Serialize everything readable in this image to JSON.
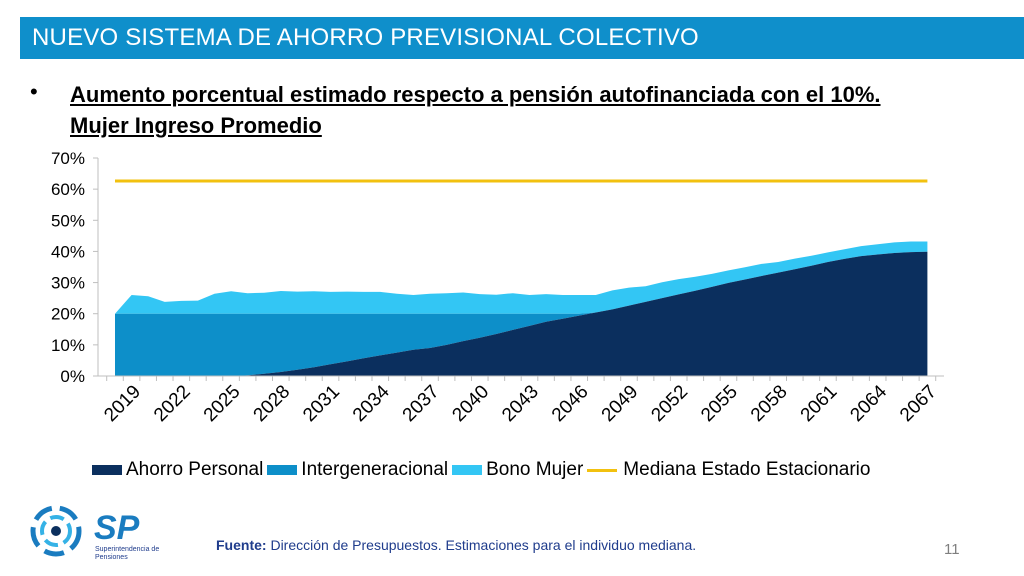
{
  "header": {
    "title": "NUEVO SISTEMA DE AHORRO PREVISIONAL COLECTIVO"
  },
  "bullet": {
    "symbol": "•",
    "line1": "Aumento porcentual estimado respecto a pensión autofinanciada con el 10%.",
    "line2": "Mujer Ingreso Promedio"
  },
  "colors": {
    "header_bg": "#0f8fcb",
    "ahorro_personal": "#0b2f5e",
    "intergeneracional": "#0d8fc9",
    "bono_mujer": "#33c6f4",
    "mediana": "#f2c10f"
  },
  "chart_data": {
    "type": "area",
    "stacked": true,
    "x": [
      2019,
      2020,
      2021,
      2022,
      2023,
      2024,
      2025,
      2026,
      2027,
      2028,
      2029,
      2030,
      2031,
      2032,
      2033,
      2034,
      2035,
      2036,
      2037,
      2038,
      2039,
      2040,
      2041,
      2042,
      2043,
      2044,
      2045,
      2046,
      2047,
      2048,
      2049,
      2050,
      2051,
      2052,
      2053,
      2054,
      2055,
      2056,
      2057,
      2058,
      2059,
      2060,
      2061,
      2062,
      2063,
      2064,
      2065,
      2066,
      2067,
      2068
    ],
    "tick_labels": [
      "2019",
      "2022",
      "2025",
      "2028",
      "2031",
      "2034",
      "2037",
      "2040",
      "2043",
      "2046",
      "2049",
      "2052",
      "2055",
      "2058",
      "2061",
      "2064",
      "2067"
    ],
    "yticks": [
      "0%",
      "10%",
      "20%",
      "30%",
      "40%",
      "50%",
      "60%",
      "70%"
    ],
    "ylim": [
      0,
      70
    ],
    "series": [
      {
        "name": "Ahorro Personal",
        "values": [
          0,
          0,
          0,
          0,
          0,
          0,
          0,
          0,
          0.2,
          0.7,
          1.3,
          2.0,
          2.8,
          3.8,
          4.7,
          5.7,
          6.6,
          7.5,
          8.4,
          9.0,
          10.0,
          11.2,
          12.3,
          13.5,
          14.8,
          16.1,
          17.4,
          18.4,
          19.4,
          20.4,
          21.4,
          22.6,
          23.8,
          25.0,
          26.2,
          27.4,
          28.6,
          29.9,
          31.0,
          32.1,
          33.2,
          34.3,
          35.4,
          36.6,
          37.6,
          38.5,
          39.0,
          39.5,
          39.8,
          39.9
        ]
      },
      {
        "name": "Intergeneracional",
        "values": [
          20,
          20,
          20,
          20,
          20,
          20,
          20,
          20,
          19.8,
          19.3,
          18.7,
          18.0,
          17.2,
          16.2,
          15.3,
          14.3,
          13.4,
          12.5,
          11.6,
          11.0,
          10.0,
          8.8,
          7.7,
          6.5,
          5.2,
          3.9,
          2.6,
          1.6,
          0.6,
          0,
          0,
          0,
          0,
          0,
          0,
          0,
          0,
          0,
          0,
          0,
          0,
          0,
          0,
          0,
          0,
          0,
          0,
          0,
          0,
          0
        ]
      },
      {
        "name": "Bono Mujer",
        "values": [
          0,
          6,
          5.6,
          3.8,
          4.1,
          4.2,
          6.4,
          7.2,
          6.6,
          6.7,
          7.3,
          7.1,
          7.2,
          7.0,
          7.1,
          7.0,
          7.0,
          6.4,
          6.0,
          6.4,
          6.6,
          6.8,
          6.3,
          6.1,
          6.6,
          6.0,
          6.3,
          6.0,
          6.0,
          5.6,
          6.1,
          5.8,
          5.0,
          5.1,
          4.9,
          4.5,
          4.2,
          4.0,
          3.9,
          3.9,
          3.4,
          3.4,
          3.2,
          3.1,
          3.1,
          3.2,
          3.3,
          3.4,
          3.4,
          3.3
        ]
      },
      {
        "name": "Mediana Estado Estacionario",
        "type": "line",
        "values": [
          62.6,
          62.6,
          62.6,
          62.6,
          62.6,
          62.6,
          62.6,
          62.6,
          62.6,
          62.6,
          62.6,
          62.6,
          62.6,
          62.6,
          62.6,
          62.6,
          62.6,
          62.6,
          62.6,
          62.6,
          62.6,
          62.6,
          62.6,
          62.6,
          62.6,
          62.6,
          62.6,
          62.6,
          62.6,
          62.6,
          62.6,
          62.6,
          62.6,
          62.6,
          62.6,
          62.6,
          62.6,
          62.6,
          62.6,
          62.6,
          62.6,
          62.6,
          62.6,
          62.6,
          62.6,
          62.6,
          62.6,
          62.6,
          62.6,
          62.6
        ]
      }
    ],
    "legend": [
      "Ahorro Personal",
      "Intergeneracional",
      "Bono Mujer",
      "Mediana Estado Estacionario"
    ],
    "legend_position": "bottom",
    "grid": false
  },
  "logo": {
    "letters": "SP",
    "line1": "Superintendencia de",
    "line2": "Pensiones"
  },
  "footer": {
    "source_label": "Fuente:",
    "source_text": " Dirección de Presupuestos. Estimaciones para el individuo mediana.",
    "page_number": "11"
  }
}
